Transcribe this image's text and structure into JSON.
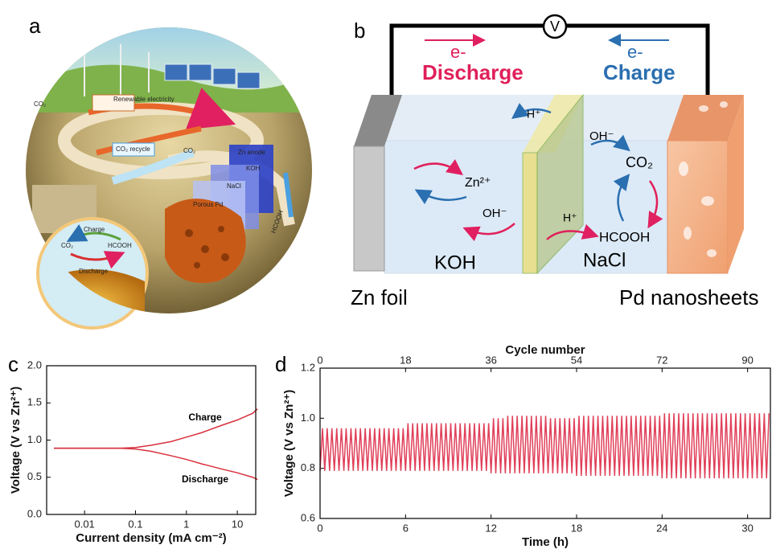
{
  "panel_labels": [
    "a",
    "b",
    "c",
    "d"
  ],
  "panel_a": {
    "labels": [
      "Renewable electricity",
      "CO₂ recycle",
      "CO₂",
      "Zn anode",
      "KOH",
      "NaCl",
      "Porous Pd",
      "HCOOH",
      "Charge",
      "CO₂",
      "HCOOH",
      "Discharge",
      "CO₂"
    ]
  },
  "panel_b": {
    "voltmeter": "V",
    "discharge_electron": "e-",
    "discharge": "Discharge",
    "charge_electron": "e-",
    "charge": "Charge",
    "ions": [
      "H⁺",
      "OH⁻",
      "Zn²⁺",
      "OH⁻",
      "CO₂",
      "H⁺",
      "HCOOH"
    ],
    "electrolytes": [
      "KOH",
      "NaCl"
    ],
    "electrodes": [
      "Zn foil",
      "Pd nanosheets"
    ]
  },
  "chart_data": [
    {
      "type": "line",
      "xscale": "log",
      "xlabel": "Current density (mA cm⁻²)",
      "ylabel": "Voltage (V vs Zn²⁺)",
      "x": [
        0.0025,
        0.005,
        0.01,
        0.02,
        0.05,
        0.1,
        0.2,
        0.5,
        1,
        2,
        5,
        10,
        20,
        25
      ],
      "series": [
        {
          "name": "Charge",
          "color": "#d8313d",
          "values": [
            0.89,
            0.89,
            0.89,
            0.89,
            0.89,
            0.9,
            0.93,
            0.98,
            1.04,
            1.1,
            1.2,
            1.27,
            1.36,
            1.42
          ]
        },
        {
          "name": "Discharge",
          "color": "#d8313d",
          "values": [
            0.89,
            0.89,
            0.89,
            0.89,
            0.89,
            0.88,
            0.85,
            0.79,
            0.74,
            0.68,
            0.61,
            0.56,
            0.5,
            0.47
          ]
        }
      ],
      "xlim": [
        0.0018,
        23
      ],
      "xticks": [
        0.01,
        0.1,
        1,
        10
      ],
      "ylim": [
        0,
        2
      ],
      "yticks": [
        {
          "value": 0,
          "label": "0.0"
        },
        0.5,
        {
          "value": 1,
          "label": "1.0"
        },
        1.5,
        {
          "value": 2,
          "label": "2.0"
        }
      ]
    },
    {
      "type": "line",
      "xlabel": "Time (h)",
      "x2label": "Cycle number",
      "ylabel": "Voltage (V vs Zn²⁺)",
      "x": [
        0,
        0.17,
        0.33,
        0.5,
        0.67,
        0.83,
        1,
        1.17,
        1.33,
        1.5,
        1.67,
        1.83,
        2,
        2.17,
        2.33,
        2.5,
        2.67,
        2.83,
        3,
        3.17,
        3.33,
        3.5,
        3.67,
        3.83,
        4,
        4.17,
        4.33,
        4.5,
        4.67,
        4.83,
        5,
        5.17,
        5.33,
        5.5,
        5.67,
        5.83,
        6,
        6.17,
        6.33,
        6.5,
        6.67,
        6.83,
        7,
        7.17,
        7.33,
        7.5,
        7.67,
        7.83,
        8,
        8.17,
        8.33,
        8.5,
        8.67,
        8.83,
        9,
        9.17,
        9.33,
        9.5,
        9.67,
        9.83,
        10,
        10.17,
        10.33,
        10.5,
        10.67,
        10.83,
        11,
        11.17,
        11.33,
        11.5,
        11.67,
        11.83,
        12,
        12.17,
        12.33,
        12.5,
        12.67,
        12.83,
        13,
        13.17,
        13.33,
        13.5,
        13.67,
        13.83,
        14,
        14.17,
        14.33,
        14.5,
        14.67,
        14.83,
        15,
        15.17,
        15.33,
        15.5,
        15.67,
        15.83,
        16,
        16.17,
        16.33,
        16.5,
        16.67,
        16.83,
        17,
        17.17,
        17.33,
        17.5,
        17.67,
        17.83,
        18,
        18.17,
        18.33,
        18.5,
        18.67,
        18.83,
        19,
        19.17,
        19.33,
        19.5,
        19.67,
        19.83,
        20,
        20.17,
        20.33,
        20.5,
        20.67,
        20.83,
        21,
        21.17,
        21.33,
        21.5,
        21.67,
        21.83,
        22,
        22.17,
        22.33,
        22.5,
        22.67,
        22.83,
        23,
        23.17,
        23.33,
        23.5,
        23.67,
        23.83,
        24,
        24.17,
        24.33,
        24.5,
        24.67,
        24.83,
        25,
        25.17,
        25.33,
        25.5,
        25.67,
        25.83,
        26,
        26.17,
        26.33,
        26.5,
        26.67,
        26.83,
        27,
        27.17,
        27.33,
        27.5,
        27.67,
        27.83,
        28,
        28.17,
        28.33,
        28.5,
        28.67,
        28.83,
        29,
        29.17,
        29.33,
        29.5,
        29.67,
        29.83,
        30,
        30.17,
        30.33,
        30.5,
        30.67,
        30.83,
        31,
        31.17,
        31.33,
        31.5
      ],
      "series": [
        {
          "name": "Voltage",
          "color": "#e0405a",
          "values": [
            0.79,
            0.96,
            0.79,
            0.96,
            0.79,
            0.96,
            0.79,
            0.96,
            0.79,
            0.96,
            0.79,
            0.96,
            0.79,
            0.96,
            0.79,
            0.96,
            0.79,
            0.96,
            0.79,
            0.96,
            0.79,
            0.96,
            0.79,
            0.96,
            0.79,
            0.96,
            0.79,
            0.96,
            0.79,
            0.96,
            0.79,
            0.96,
            0.79,
            0.96,
            0.79,
            0.96,
            0.79,
            0.98,
            0.79,
            0.98,
            0.79,
            0.98,
            0.79,
            0.98,
            0.79,
            0.98,
            0.79,
            0.98,
            0.79,
            0.98,
            0.79,
            0.98,
            0.79,
            0.98,
            0.79,
            0.98,
            0.79,
            0.98,
            0.79,
            0.98,
            0.79,
            0.98,
            0.79,
            0.98,
            0.79,
            0.98,
            0.79,
            0.98,
            0.79,
            0.98,
            0.79,
            0.98,
            0.78,
            1.0,
            0.78,
            1.0,
            0.78,
            1.0,
            0.78,
            1.01,
            0.78,
            1.01,
            0.78,
            1.01,
            0.78,
            1.01,
            0.78,
            1.01,
            0.78,
            1.01,
            0.78,
            1.01,
            0.78,
            1.01,
            0.78,
            1.01,
            0.78,
            1.0,
            0.78,
            1.0,
            0.78,
            1.0,
            0.78,
            1.0,
            0.78,
            1.0,
            0.78,
            1.0,
            0.77,
            1.01,
            0.77,
            1.01,
            0.77,
            1.01,
            0.77,
            1.01,
            0.77,
            1.01,
            0.77,
            1.01,
            0.77,
            1.01,
            0.77,
            1.01,
            0.77,
            1.01,
            0.77,
            1.01,
            0.77,
            1.01,
            0.77,
            1.01,
            0.77,
            1.01,
            0.77,
            1.01,
            0.77,
            1.01,
            0.77,
            1.01,
            0.77,
            1.01,
            0.77,
            1.01,
            0.76,
            1.02,
            0.76,
            1.02,
            0.76,
            1.02,
            0.76,
            1.02,
            0.76,
            1.02,
            0.76,
            1.02,
            0.76,
            1.02,
            0.76,
            1.02,
            0.76,
            1.02,
            0.76,
            1.02,
            0.76,
            1.02,
            0.76,
            1.02,
            0.76,
            1.02,
            0.76,
            1.02,
            0.76,
            1.02,
            0.76,
            1.02,
            0.76,
            1.02,
            0.76,
            1.02,
            0.76,
            1.02,
            0.76,
            1.02,
            0.76,
            1.02,
            0.76,
            1.02,
            0.76,
            1.02
          ]
        }
      ],
      "xlim": [
        0,
        31.6
      ],
      "xticks": [
        0,
        6,
        12,
        18,
        24,
        30
      ],
      "x2lim": [
        0,
        94.8
      ],
      "x2ticks": [
        0,
        18,
        36,
        54,
        72,
        90
      ],
      "ylim": [
        0.6,
        1.2
      ],
      "yticks": [
        0.6,
        0.8,
        {
          "value": 1,
          "label": "1.0"
        },
        1.2
      ]
    }
  ]
}
